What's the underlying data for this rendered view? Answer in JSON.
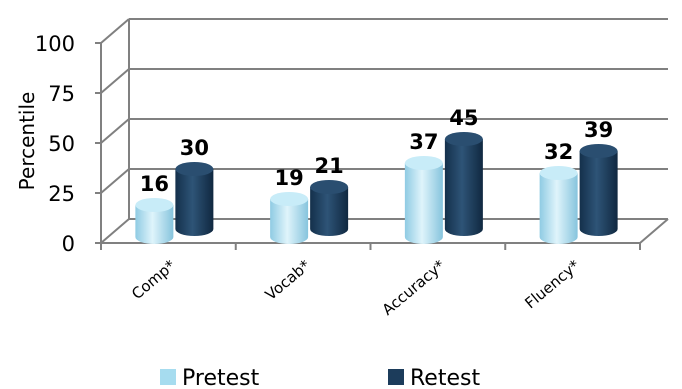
{
  "chart_data": {
    "type": "bar",
    "categories": [
      "Comp*",
      "Vocab*",
      "Accuracy*",
      "Fluency*"
    ],
    "series": [
      {
        "name": "Pretest",
        "values": [
          16,
          19,
          37,
          32
        ]
      },
      {
        "name": "Retest",
        "values": [
          30,
          21,
          45,
          39
        ]
      }
    ],
    "data_labels": [
      [
        "16",
        "19",
        "37",
        "32"
      ],
      [
        "30",
        "21",
        "45",
        "39"
      ]
    ],
    "title": "",
    "xlabel": "",
    "ylabel": "Percentile",
    "ylim": [
      0,
      100
    ],
    "yticks": [
      "0",
      "25",
      "50",
      "75",
      "100"
    ],
    "grid": true,
    "legend_position": "bottom",
    "style": "3d-cylinder",
    "colors": {
      "Pretest": "#a6dcef",
      "Retest": "#1c3c5b",
      "grid": "#808080"
    }
  }
}
